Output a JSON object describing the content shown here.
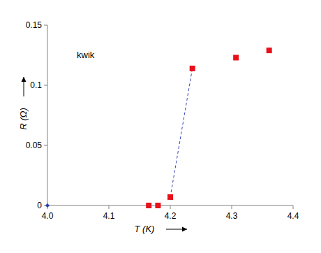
{
  "chart_data": {
    "type": "scatter",
    "annotation": "kwik",
    "x_label": "T (K)",
    "y_label": "R (Ω)",
    "xlim": [
      4.0,
      4.4
    ],
    "xticks": [
      {
        "value": 4.0,
        "label": "4.0"
      },
      4.1,
      4.2,
      4.3,
      4.4
    ],
    "ylim": [
      0,
      0.15
    ],
    "yticks": [
      0,
      0.05,
      0.1,
      0.15
    ],
    "grid": false,
    "series": [
      {
        "type": "scatter",
        "color": "#e8101a",
        "marker": "square",
        "x": [
          4.165,
          4.18,
          4.2,
          4.236,
          4.307,
          4.361
        ],
        "values": [
          0,
          0,
          0.007,
          0.114,
          0.123,
          0.129
        ]
      },
      {
        "type": "line",
        "color": "#3344bb",
        "line_style": "dashed",
        "x": [
          4.2,
          4.236
        ],
        "values": [
          0.007,
          0.114
        ]
      },
      {
        "type": "scatter",
        "color": "#1f3fae",
        "marker": "diamond",
        "x": [
          4.0
        ],
        "values": [
          0
        ]
      }
    ]
  }
}
